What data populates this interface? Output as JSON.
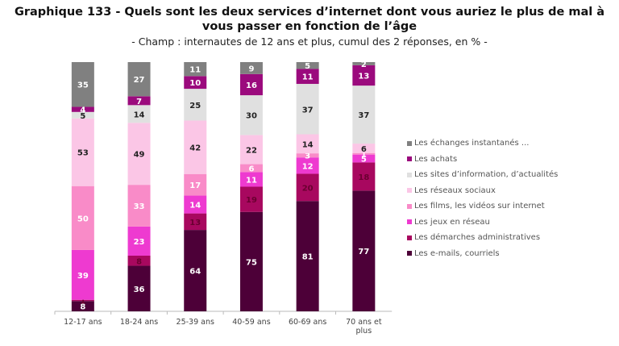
{
  "chart_data": {
    "type": "bar",
    "stacked": true,
    "title": "Graphique 133 - Quels sont les deux services d’internet dont vous auriez le plus de mal à vous passer en fonction de l’âge",
    "subtitle": "- Champ : internautes de 12 ans et plus, cumul des 2 réponses, en % -",
    "categories": [
      "12-17 ans",
      "18-24 ans",
      "25-39 ans",
      "40-59 ans",
      "60-69 ans",
      "70 ans et plus"
    ],
    "legend_position": "right",
    "grid": false,
    "series": [
      {
        "name": "Les e-mails, courriels",
        "color": "#4d0038",
        "values": [
          8,
          36,
          64,
          75,
          81,
          77
        ]
      },
      {
        "name": "Les démarches administratives",
        "color": "#a8085f",
        "values": [
          1,
          8,
          13,
          19,
          20,
          18
        ]
      },
      {
        "name": "Les jeux en réseau",
        "color": "#ee3ad0",
        "values": [
          39,
          23,
          14,
          11,
          12,
          5
        ]
      },
      {
        "name": "Les films, les vidéos sur internet",
        "color": "#f98bc8",
        "values": [
          50,
          33,
          17,
          6,
          3,
          1
        ]
      },
      {
        "name": "Les réseaux sociaux",
        "color": "#fbc6e6",
        "values": [
          53,
          49,
          42,
          22,
          14,
          6
        ]
      },
      {
        "name": "Les sites d’information, d’actualités",
        "color": "#e0e0e0",
        "values": [
          5,
          14,
          25,
          30,
          37,
          37
        ]
      },
      {
        "name": "Les achats",
        "color": "#9b0a7d",
        "values": [
          4,
          7,
          10,
          16,
          11,
          13
        ]
      },
      {
        "name": "Les échanges instantanés ...",
        "color": "#808080",
        "values": [
          35,
          27,
          11,
          9,
          5,
          2
        ]
      }
    ]
  }
}
